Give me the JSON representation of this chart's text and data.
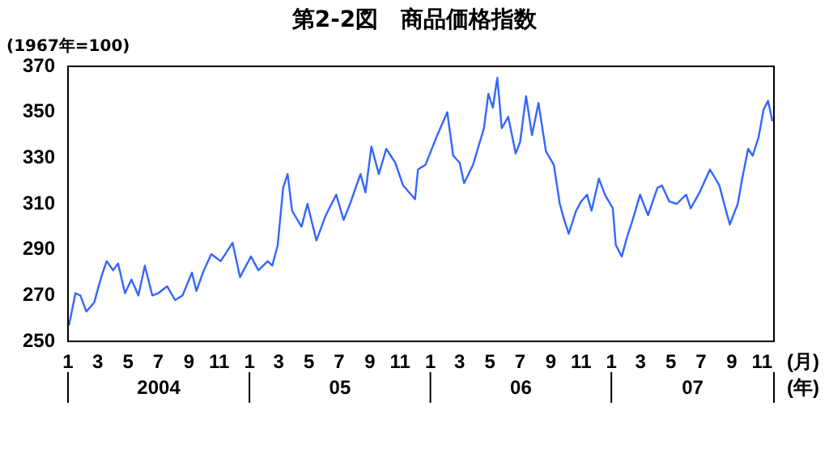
{
  "chart_data": {
    "type": "line",
    "title": "第2-2図　商品価格指数",
    "ylabel": "(1967年=100)",
    "xlabel": "(月)\n(年)",
    "x": [
      "2004-01-03",
      "2004-01-16",
      "2004-01-26",
      "2004-02-07",
      "2004-02-23",
      "2004-03-04",
      "2004-03-11",
      "2004-03-19",
      "2004-04-01",
      "2004-04-11",
      "2004-04-25",
      "2004-05-08",
      "2004-05-22",
      "2004-06-04",
      "2004-06-19",
      "2004-07-01",
      "2004-07-19",
      "2004-08-04",
      "2004-08-19",
      "2004-09-07",
      "2004-09-16",
      "2004-10-01",
      "2004-10-16",
      "2004-11-04",
      "2004-11-28",
      "2004-12-13",
      "2005-01-04",
      "2005-01-19",
      "2005-02-07",
      "2005-02-16",
      "2005-02-27",
      "2005-03-10",
      "2005-03-19",
      "2005-03-28",
      "2005-04-16",
      "2005-04-28",
      "2005-05-16",
      "2005-06-04",
      "2005-06-25",
      "2005-07-10",
      "2005-07-23",
      "2005-08-13",
      "2005-08-23",
      "2005-09-04",
      "2005-09-19",
      "2005-10-04",
      "2005-10-22",
      "2005-11-07",
      "2005-12-01",
      "2005-12-07",
      "2005-12-22",
      "2006-01-13",
      "2006-02-04",
      "2006-02-16",
      "2006-03-01",
      "2006-03-10",
      "2006-03-28",
      "2006-04-19",
      "2006-04-28",
      "2006-05-07",
      "2006-05-16",
      "2006-05-25",
      "2006-06-07",
      "2006-06-22",
      "2006-07-01",
      "2006-07-13",
      "2006-07-25",
      "2006-08-07",
      "2006-08-22",
      "2006-09-07",
      "2006-09-19",
      "2006-09-28",
      "2006-10-07",
      "2006-10-22",
      "2006-11-01",
      "2006-11-13",
      "2006-11-22",
      "2006-12-07",
      "2006-12-19",
      "2007-01-04",
      "2007-01-10",
      "2007-01-22",
      "2007-02-01",
      "2007-02-13",
      "2007-02-28",
      "2007-03-16",
      "2007-04-04",
      "2007-04-13",
      "2007-04-28",
      "2007-05-13",
      "2007-06-01",
      "2007-06-10",
      "2007-06-28",
      "2007-07-19",
      "2007-08-07",
      "2007-08-19",
      "2007-08-28",
      "2007-09-13",
      "2007-09-22",
      "2007-10-04",
      "2007-10-13",
      "2007-10-25",
      "2007-11-04",
      "2007-11-13",
      "2007-11-22"
    ],
    "series": [
      {
        "color": "#3366ff",
        "values": [
          257,
          271,
          270,
          263,
          267,
          275,
          280,
          285,
          281,
          284,
          271,
          277,
          270,
          283,
          270,
          271,
          274,
          268,
          270,
          280,
          272,
          281,
          288,
          285,
          293,
          278,
          287,
          281,
          285,
          283,
          292,
          317,
          323,
          307,
          300,
          310,
          294,
          305,
          314,
          303,
          310,
          323,
          315,
          335,
          323,
          334,
          328,
          318,
          312,
          325,
          327,
          339,
          350,
          331,
          328,
          319,
          327,
          343,
          358,
          352,
          365,
          343,
          348,
          332,
          337,
          357,
          340,
          354,
          333,
          327,
          310,
          303,
          297,
          307,
          311,
          314,
          307,
          321,
          314,
          308,
          292,
          287,
          295,
          303,
          314,
          305,
          317,
          318,
          311,
          310,
          314,
          308,
          315,
          325,
          318,
          308,
          301,
          310,
          321,
          334,
          331,
          339,
          351,
          355,
          346
        ]
      }
    ],
    "xlim": [
      "2004-01-01",
      "2007-11-25"
    ],
    "xticks": [
      {
        "value": "2004-01-01",
        "label": "1"
      },
      {
        "value": "2004-03-01",
        "label": "3"
      },
      {
        "value": "2004-05-01",
        "label": "5"
      },
      {
        "value": "2004-07-01",
        "label": "7"
      },
      {
        "value": "2004-09-01",
        "label": "9"
      },
      {
        "value": "2004-11-01",
        "label": "11"
      },
      {
        "value": "2005-01-01",
        "label": "1"
      },
      {
        "value": "2005-03-01",
        "label": "3"
      },
      {
        "value": "2005-05-01",
        "label": "5"
      },
      {
        "value": "2005-07-01",
        "label": "7"
      },
      {
        "value": "2005-09-01",
        "label": "9"
      },
      {
        "value": "2005-11-01",
        "label": "11"
      },
      {
        "value": "2006-01-01",
        "label": "1"
      },
      {
        "value": "2006-03-01",
        "label": "3"
      },
      {
        "value": "2006-05-01",
        "label": "5"
      },
      {
        "value": "2006-07-01",
        "label": "7"
      },
      {
        "value": "2006-09-01",
        "label": "9"
      },
      {
        "value": "2006-11-01",
        "label": "11"
      },
      {
        "value": "2007-01-01",
        "label": "1"
      },
      {
        "value": "2007-03-01",
        "label": "3"
      },
      {
        "value": "2007-05-01",
        "label": "5"
      },
      {
        "value": "2007-07-01",
        "label": "7"
      },
      {
        "value": "2007-09-01",
        "label": "9"
      },
      {
        "value": "2007-11-01",
        "label": "11"
      }
    ],
    "ylim": [
      250,
      370
    ],
    "yticks": [
      250,
      270,
      290,
      310,
      330,
      350,
      370
    ],
    "annotations": [
      "2004",
      "05",
      "06",
      "07"
    ],
    "grid": false,
    "legend": false,
    "marker": "none",
    "line_style": "solid"
  }
}
